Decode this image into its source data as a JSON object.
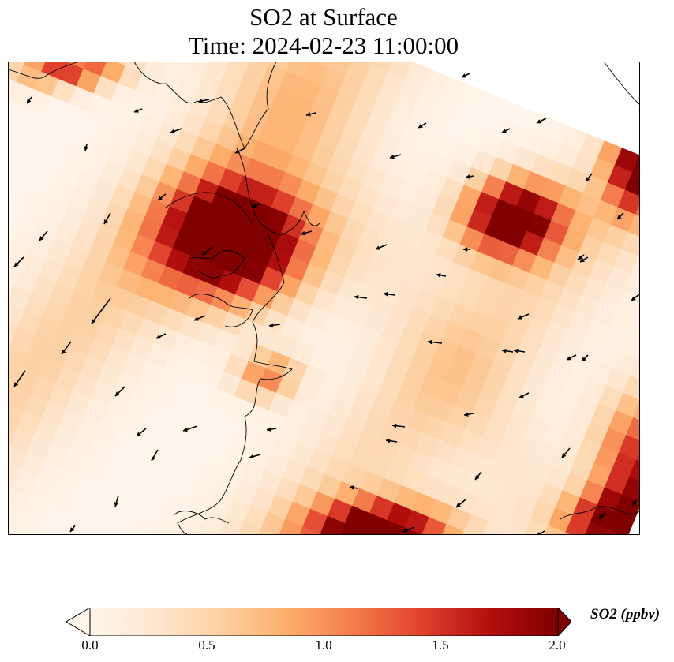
{
  "title_line1": "SO2 at Surface",
  "title_line2": "Time: 2024-02-23 11:00:00",
  "colorbar": {
    "label": "SO2 (ppbv)",
    "ticks": [
      "0.0",
      "0.5",
      "1.0",
      "1.5",
      "2.0"
    ],
    "min": 0.0,
    "max": 2.0,
    "extend": "both",
    "colormap": [
      "#fff5eb",
      "#fee6ce",
      "#fdd0a2",
      "#fdae6b",
      "#f47d4d",
      "#e2452f",
      "#b50f0f",
      "#800000"
    ]
  },
  "map": {
    "field": "SO2 surface concentration",
    "features": [
      "coastline",
      "wind vectors"
    ],
    "hotspots": [
      {
        "area": "center-left block",
        "so2_ppbv": 2.0
      },
      {
        "area": "upper-right",
        "so2_ppbv": 2.0
      },
      {
        "area": "bottom-center edge",
        "so2_ppbv": 2.0
      },
      {
        "area": "right edge",
        "so2_ppbv": 1.7
      }
    ],
    "prevailing_wind": "from north-east to south-west"
  }
}
